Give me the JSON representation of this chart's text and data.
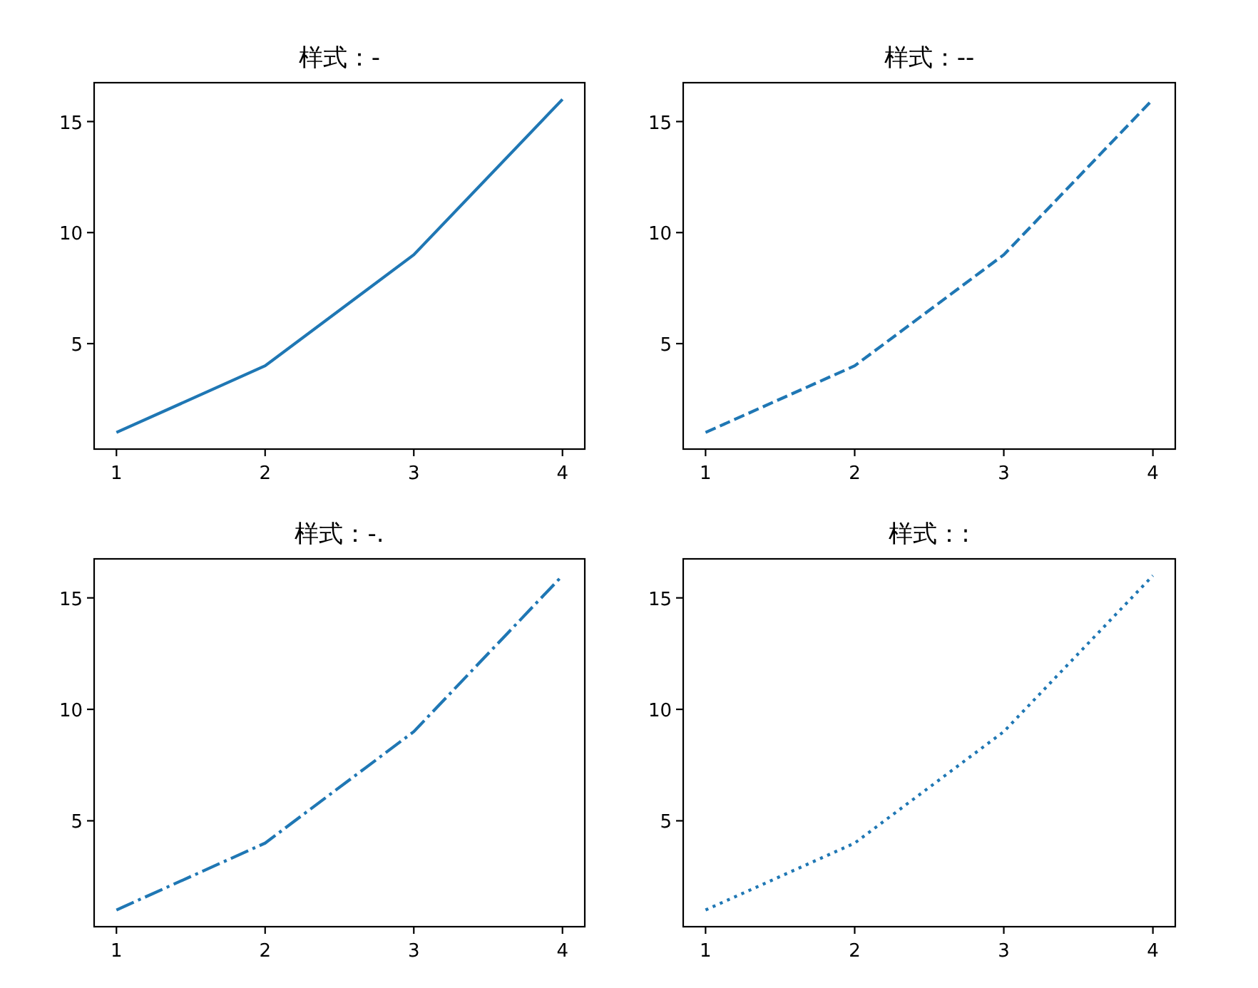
{
  "chart_data": [
    {
      "type": "line",
      "title": "样式：-",
      "x": [
        1,
        2,
        3,
        4
      ],
      "series": [
        {
          "color": "#1f77b4",
          "values": [
            1,
            4,
            9,
            16
          ]
        }
      ],
      "line_style": "solid",
      "xlim": [
        0.85,
        4.15
      ],
      "ylim": [
        0.25,
        16.75
      ],
      "xticks": [
        1,
        2,
        3,
        4
      ],
      "yticks": [
        5,
        10,
        15
      ]
    },
    {
      "type": "line",
      "title": "样式：--",
      "x": [
        1,
        2,
        3,
        4
      ],
      "series": [
        {
          "color": "#1f77b4",
          "values": [
            1,
            4,
            9,
            16
          ]
        }
      ],
      "line_style": "dashed",
      "xlim": [
        0.85,
        4.15
      ],
      "ylim": [
        0.25,
        16.75
      ],
      "xticks": [
        1,
        2,
        3,
        4
      ],
      "yticks": [
        5,
        10,
        15
      ]
    },
    {
      "type": "line",
      "title": "样式：-.",
      "x": [
        1,
        2,
        3,
        4
      ],
      "series": [
        {
          "color": "#1f77b4",
          "values": [
            1,
            4,
            9,
            16
          ]
        }
      ],
      "line_style": "dashdot",
      "xlim": [
        0.85,
        4.15
      ],
      "ylim": [
        0.25,
        16.75
      ],
      "xticks": [
        1,
        2,
        3,
        4
      ],
      "yticks": [
        5,
        10,
        15
      ]
    },
    {
      "type": "line",
      "title": "样式：:",
      "x": [
        1,
        2,
        3,
        4
      ],
      "series": [
        {
          "color": "#1f77b4",
          "values": [
            1,
            4,
            9,
            16
          ]
        }
      ],
      "line_style": "dotted",
      "xlim": [
        0.85,
        4.15
      ],
      "ylim": [
        0.25,
        16.75
      ],
      "xticks": [
        1,
        2,
        3,
        4
      ],
      "yticks": [
        5,
        10,
        15
      ]
    }
  ]
}
